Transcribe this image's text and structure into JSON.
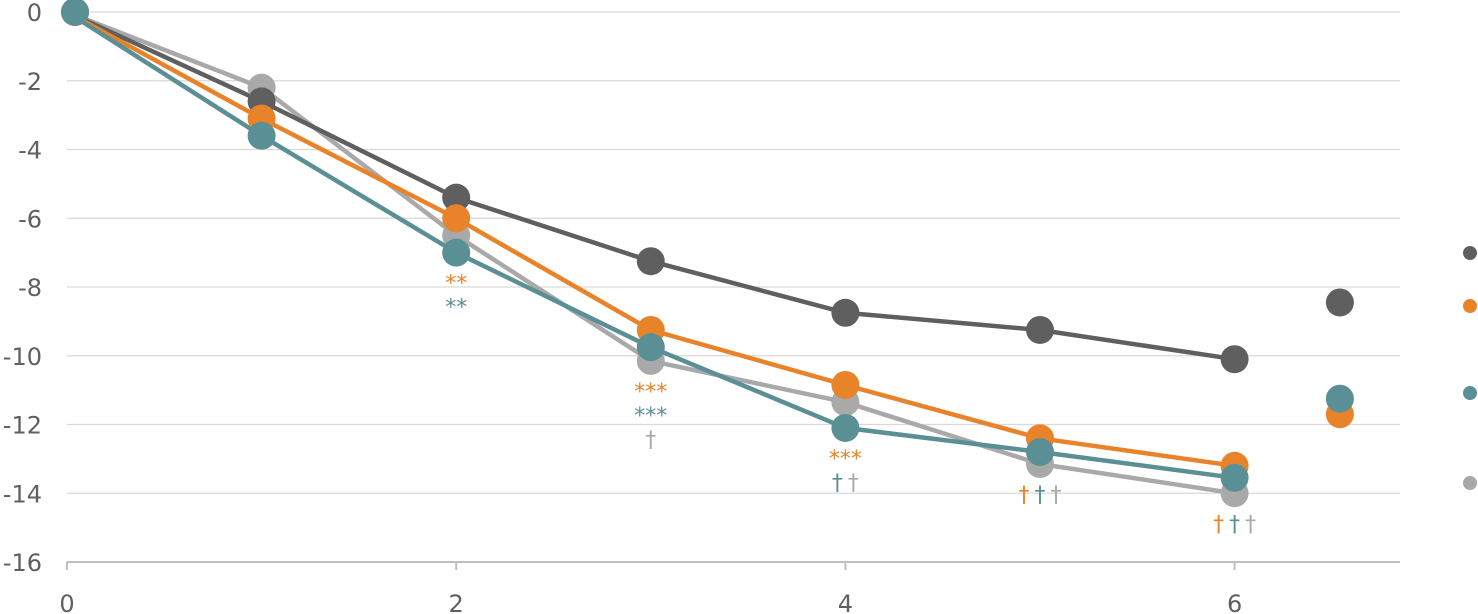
{
  "chart_data": {
    "type": "line",
    "title": "",
    "xlabel": "",
    "ylabel": "",
    "xlim": [
      0,
      6.85
    ],
    "ylim": [
      -16,
      0
    ],
    "x_ticks": [
      "0",
      "2",
      "4",
      "6"
    ],
    "y_ticks": [
      "0",
      "-2",
      "-4",
      "-6",
      "-8",
      "-10",
      "-12",
      "-14",
      "-16"
    ],
    "grid": "horizontal",
    "legend": "right",
    "series": [
      {
        "color": "#5f5f5f",
        "x": [
          0,
          1,
          2,
          3,
          4,
          5,
          6
        ],
        "values": [
          0,
          -2.6,
          -5.4,
          -7.25,
          -8.75,
          -9.25,
          -10.1
        ],
        "summary_point": -8.45,
        "marks": [
          "",
          "",
          "",
          "",
          "",
          "",
          ""
        ]
      },
      {
        "color": "#e8832a",
        "x": [
          0,
          1,
          2,
          3,
          4,
          5,
          6
        ],
        "values": [
          0,
          -3.1,
          -6.0,
          -9.25,
          -10.85,
          -12.4,
          -13.2
        ],
        "summary_point": -11.7,
        "marks": [
          "",
          "",
          "**",
          "***",
          "***",
          "†",
          "†"
        ]
      },
      {
        "color": "#5b8f96",
        "x": [
          0,
          1,
          2,
          3,
          4,
          5,
          6
        ],
        "values": [
          0,
          -3.6,
          -7.0,
          -9.75,
          -12.1,
          -12.8,
          -13.55
        ],
        "summary_point": -11.25,
        "marks": [
          "",
          "",
          "**",
          "***",
          "†",
          "†",
          "†"
        ]
      },
      {
        "color": "#a9a9a9",
        "x": [
          0,
          1,
          2,
          3,
          4,
          5,
          6
        ],
        "values": [
          0,
          -2.2,
          -6.5,
          -10.15,
          -11.35,
          -13.15,
          -14.0
        ],
        "summary_point": null,
        "marks": [
          "",
          "",
          "",
          "†",
          "†",
          "†",
          "†"
        ]
      }
    ]
  }
}
